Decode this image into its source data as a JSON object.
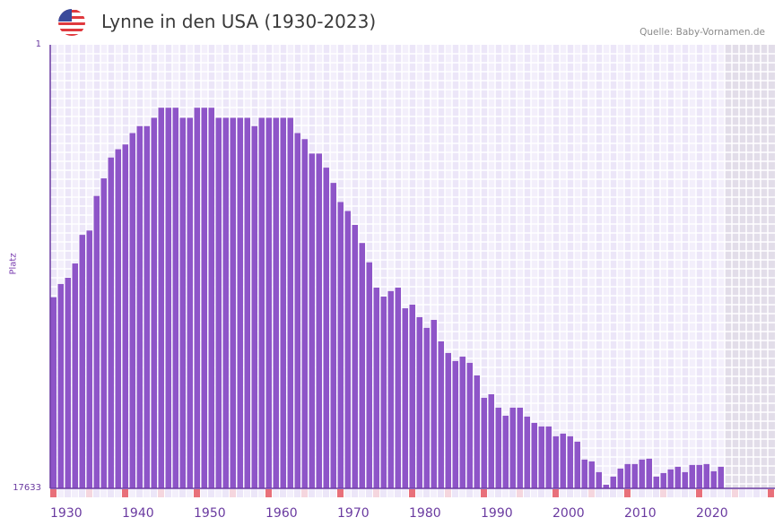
{
  "header": {
    "title": "Lynne in den USA (1930-2023)",
    "source": "Quelle: Baby-Vornamen.de",
    "flag_icon": "us-flag-icon"
  },
  "colors": {
    "bar": "#8e55c8",
    "axis": "#6a3aa0",
    "decade_marker": "#e8707a",
    "half_decade_marker": "#f5d6de",
    "future_shade": "#e2dde9"
  },
  "chart_data": {
    "type": "bar",
    "title": "Lynne in den USA (1930-2023)",
    "xlabel": "",
    "ylabel": "Platz",
    "y_scale": "log-inverted",
    "ylim": [
      1,
      17633
    ],
    "y_ticks": [
      "1",
      "17633"
    ],
    "x_range": [
      1930,
      2030
    ],
    "x_ticks": [
      "1930",
      "1940",
      "1950",
      "1960",
      "1970",
      "1980",
      "1990",
      "2000",
      "2010",
      "2020"
    ],
    "future_from": 2024,
    "grid": true,
    "x": [
      1930,
      1931,
      1932,
      1933,
      1934,
      1935,
      1936,
      1937,
      1938,
      1939,
      1940,
      1941,
      1942,
      1943,
      1944,
      1945,
      1946,
      1947,
      1948,
      1949,
      1950,
      1951,
      1952,
      1953,
      1954,
      1955,
      1956,
      1957,
      1958,
      1959,
      1960,
      1961,
      1962,
      1963,
      1964,
      1965,
      1966,
      1967,
      1968,
      1969,
      1970,
      1971,
      1972,
      1973,
      1974,
      1975,
      1976,
      1977,
      1978,
      1979,
      1980,
      1981,
      1982,
      1983,
      1984,
      1985,
      1986,
      1987,
      1988,
      1989,
      1990,
      1991,
      1992,
      1993,
      1994,
      1995,
      1996,
      1997,
      1998,
      1999,
      2000,
      2001,
      2002,
      2003,
      2004,
      2005,
      2006,
      2007,
      2008,
      2009,
      2010,
      2011,
      2012,
      2013,
      2014,
      2015,
      2016,
      2017,
      2018,
      2019,
      2020,
      2021,
      2022,
      2023
    ],
    "values": [
      261,
      195,
      170,
      124,
      66,
      60,
      28,
      19,
      12,
      10,
      9,
      7,
      6,
      6,
      5,
      4,
      4,
      4,
      5,
      5,
      4,
      4,
      4,
      5,
      5,
      5,
      5,
      5,
      6,
      5,
      5,
      5,
      5,
      5,
      7,
      8,
      11,
      11,
      15,
      21,
      32,
      39,
      53,
      79,
      121,
      211,
      257,
      228,
      211,
      333,
      307,
      405,
      513,
      430,
      690,
      892,
      1066,
      966,
      1109,
      1463,
      2397,
      2215,
      2979,
      3556,
      2979,
      2979,
      3626,
      4166,
      4506,
      4506,
      5598,
      5275,
      5598,
      6300,
      9352,
      9733,
      12337,
      16263,
      13614,
      11400,
      10320,
      10320,
      9352,
      9170,
      13614,
      12590,
      11620,
      10950,
      12337,
      10530,
      10530,
      10320,
      12100,
      10950
    ]
  }
}
